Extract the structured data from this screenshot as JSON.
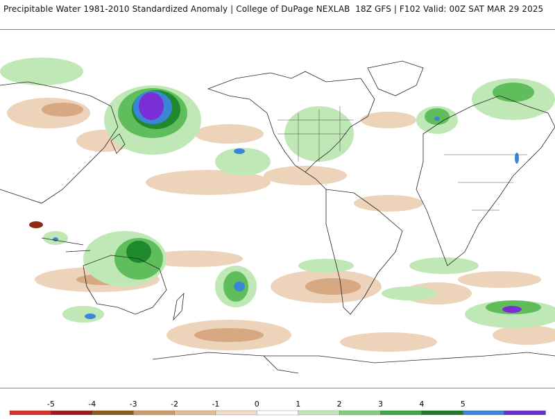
{
  "header": {
    "title": "Precipitable Water 1981-2010 Standardized Anomaly | College of DuPage NEXLAB  18Z GFS | F102 Valid: 00Z SAT MAR 29 2025"
  },
  "legend": {
    "ticks": [
      "-5",
      "-4",
      "-3",
      "-2",
      "-1",
      "0",
      "1",
      "2",
      "3",
      "4",
      "5"
    ],
    "bins": [
      {
        "color": "#d73027"
      },
      {
        "color": "#9b1c1c"
      },
      {
        "color": "#8c5a16"
      },
      {
        "color": "#d09a68"
      },
      {
        "color": "#e3bd98"
      },
      {
        "color": "#f1dcc8"
      },
      {
        "color": "#ffffff"
      },
      {
        "color": "#bfe8b6"
      },
      {
        "color": "#7fcf77"
      },
      {
        "color": "#3fa843"
      },
      {
        "color": "#1e7a28"
      },
      {
        "color": "#3a86d6"
      },
      {
        "color": "#6a2fc8"
      }
    ]
  },
  "colors": {
    "dry_light": "#ecd3b9",
    "dry_mid": "#d6a983",
    "dry_dark": "#8c2a16",
    "wet_light": "#bfe8b6",
    "wet_mid": "#5fbe5b",
    "wet_dark": "#1e8a2d",
    "wet_blue": "#3a86d6",
    "wet_purple": "#7a2fd6",
    "coast": "#222222"
  }
}
